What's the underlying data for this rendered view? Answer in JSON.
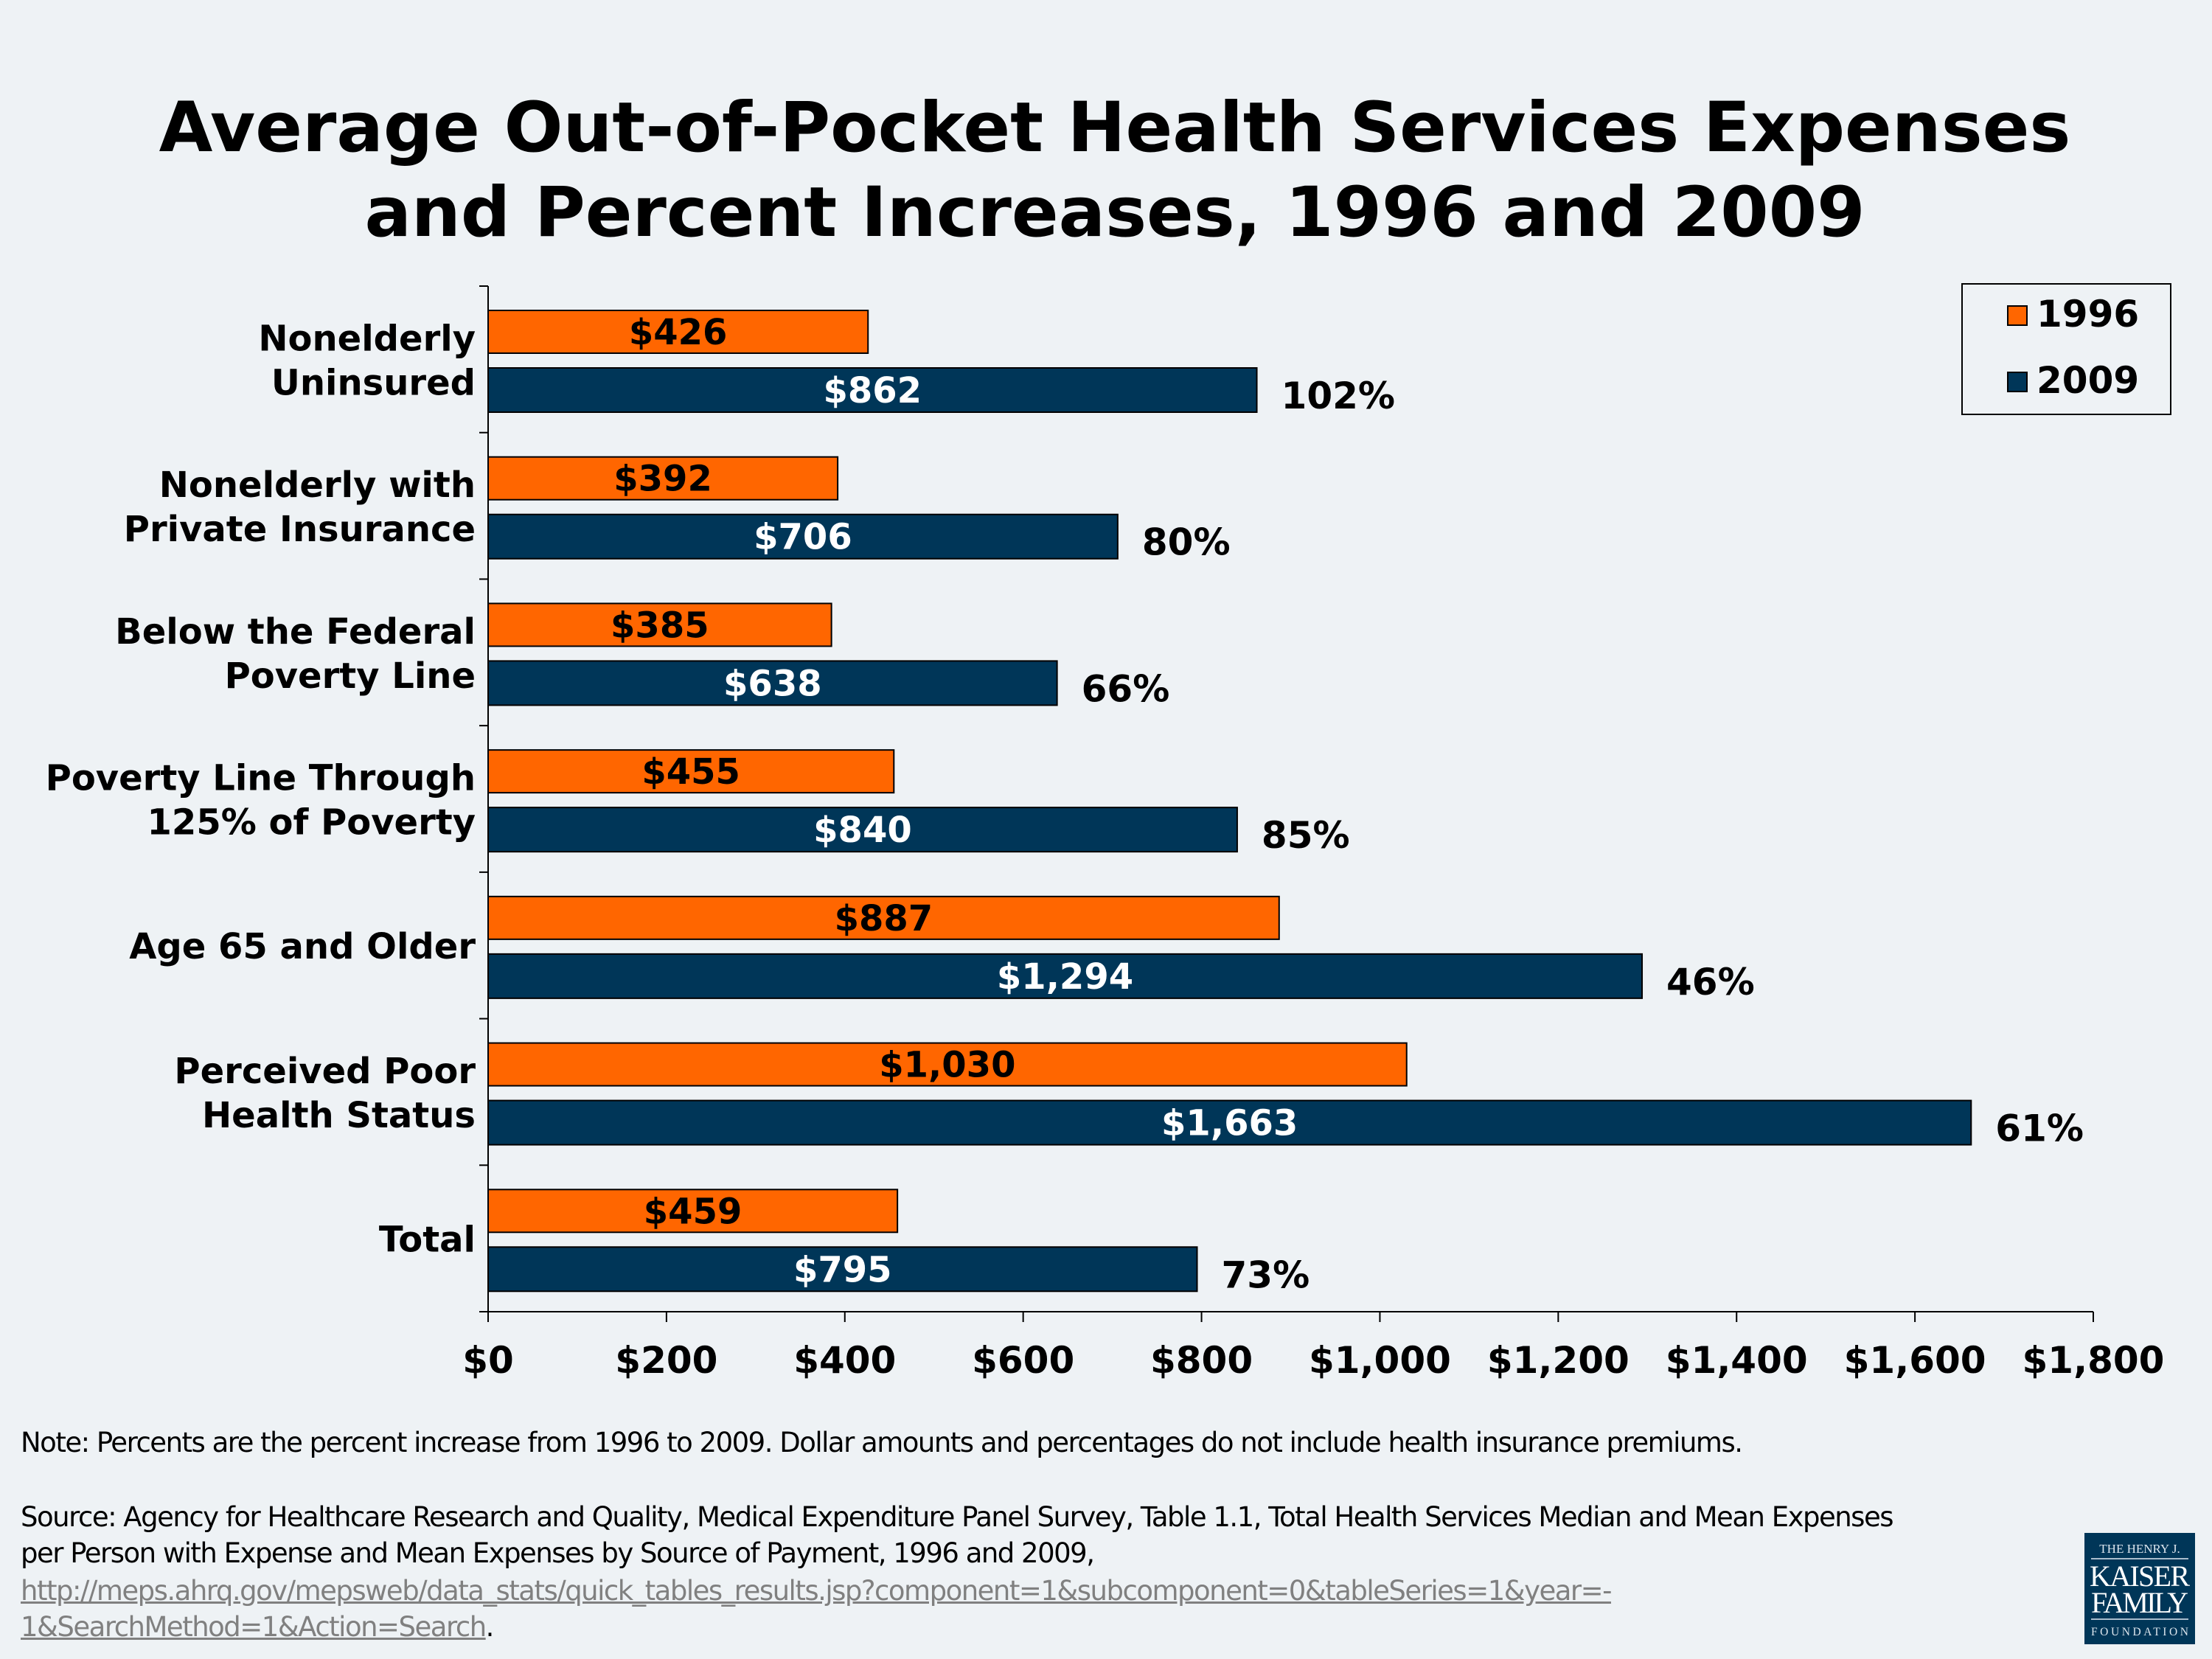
{
  "chart_data": {
    "type": "bar",
    "orientation": "horizontal",
    "title": [
      "Average Out-of-Pocket Health Services Expenses",
      "and Percent Increases, 1996 and 2009"
    ],
    "categories": [
      [
        "Nonelderly",
        "Uninsured"
      ],
      [
        "Nonelderly with",
        "Private Insurance"
      ],
      [
        "Below the Federal",
        "Poverty Line"
      ],
      [
        "Poverty Line Through",
        "125% of Poverty"
      ],
      [
        "Age 65 and Older"
      ],
      [
        "Perceived Poor",
        "Health Status"
      ],
      [
        "Total"
      ]
    ],
    "series": [
      {
        "name": "1996",
        "color": "#ff6600",
        "label_color": "#000000",
        "values": [
          426,
          392,
          385,
          455,
          887,
          1030,
          459
        ],
        "labels": [
          "$426",
          "$392",
          "$385",
          "$455",
          "$887",
          "$1,030",
          "$459"
        ]
      },
      {
        "name": "2009",
        "color": "#003658",
        "label_color": "#ffffff",
        "values": [
          862,
          706,
          638,
          840,
          1294,
          1663,
          795
        ],
        "labels": [
          "$862",
          "$706",
          "$638",
          "$840",
          "$1,294",
          "$1,663",
          "$795"
        ]
      }
    ],
    "percent_increase": [
      "102%",
      "80%",
      "66%",
      "85%",
      "46%",
      "61%",
      "73%"
    ],
    "xlim": [
      0,
      1800
    ],
    "xticks": [
      0,
      200,
      400,
      600,
      800,
      1000,
      1200,
      1400,
      1600,
      1800
    ],
    "xtick_labels": [
      "$0",
      "$200",
      "$400",
      "$600",
      "$800",
      "$1,000",
      "$1,200",
      "$1,400",
      "$1,600",
      "$1,800"
    ],
    "grid": false,
    "legend_position": "top-right"
  },
  "footer": {
    "note": "Note:  Percents are the percent increase from 1996 to 2009. Dollar amounts and percentages do not include health insurance premiums.",
    "source_line1": "Source:  Agency for Healthcare Research and Quality, Medical Expenditure Panel Survey, Table 1.1, Total Health Services Median and Mean Expenses",
    "source_line2": "per Person with Expense and Mean Expenses by Source of Payment, 1996 and 2009,",
    "link_line1": "http://meps.ahrq.gov/mepsweb/data_stats/quick_tables_results.jsp?component=1&subcomponent=0&tableSeries=1&year=-",
    "link_line2": "1&SearchMethod=1&Action=Search",
    "link_end": "."
  },
  "logo": {
    "lines": [
      "THE HENRY J.",
      "KAISER",
      "FAMILY",
      "FOUNDATION"
    ],
    "color": "#003658"
  }
}
